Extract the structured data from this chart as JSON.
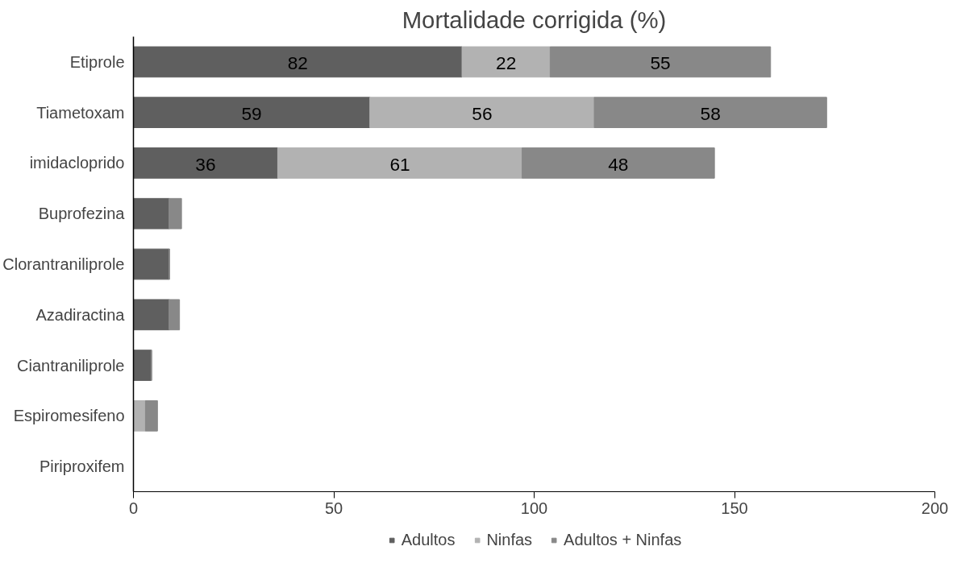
{
  "chart_data": {
    "type": "bar",
    "title": "Mortalidade corrigida (%)",
    "orientation": "horizontal",
    "stacked": true,
    "categories": [
      "Etiprole",
      "Tiametoxam",
      "imidacloprido",
      "Buprofezina",
      "Clorantraniliprole",
      "Azadiractina",
      "Ciantraniliprole",
      "Espiromesifeno",
      "Piriproxifem"
    ],
    "series": [
      {
        "name": "Adultos",
        "color": "#5f5f5f",
        "values": [
          82,
          59,
          36,
          9,
          9,
          9,
          4.5,
          0,
          0
        ],
        "value_labels": [
          "82",
          "59",
          "36",
          null,
          null,
          null,
          null,
          null,
          null
        ]
      },
      {
        "name": "Ninfas",
        "color": "#b2b2b2",
        "values": [
          22,
          56,
          61,
          0,
          0,
          0,
          0,
          3,
          0
        ],
        "value_labels": [
          "22",
          "56",
          "61",
          null,
          null,
          null,
          null,
          null,
          null
        ]
      },
      {
        "name": "Adultos + Ninfas",
        "color": "#888888",
        "values": [
          55,
          58,
          48,
          3,
          0,
          2.5,
          0,
          3,
          0
        ],
        "value_labels": [
          "55",
          "58",
          "48",
          null,
          null,
          null,
          null,
          null,
          null
        ]
      }
    ],
    "xlim": [
      0,
      200
    ],
    "xticks": [
      0,
      50,
      100,
      150,
      200
    ],
    "grid": false,
    "legend": "bottom"
  }
}
